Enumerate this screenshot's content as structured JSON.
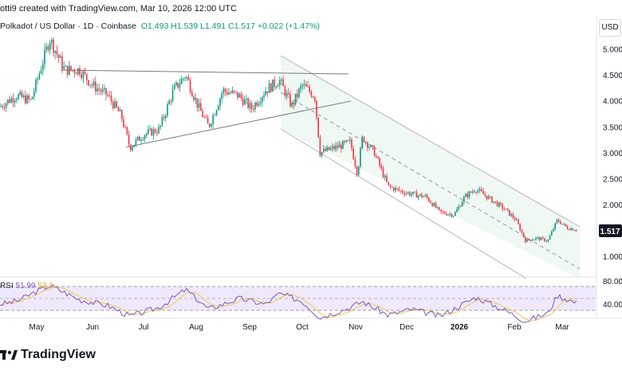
{
  "header": {
    "created_by": "otti9 created with TradingView.com, Mar 10, 2026 12:00 UTC"
  },
  "symbol": {
    "name": "Polkadot / US Dollar · 1D · Coinbase",
    "open": "O1.493",
    "high": "H1.539",
    "low": "L1.491",
    "close": "C1.517",
    "change": "+0.022 (+1.47%)"
  },
  "currency_label": "USD",
  "rsi": {
    "label": "RSI",
    "value": "51.99",
    "ma_value": "53.3",
    "levels": [
      "80.00",
      "40.00"
    ]
  },
  "footer": {
    "brand": "TradingView"
  },
  "colors": {
    "up": "#089981",
    "down": "#f23645",
    "rsi_line": "#7e57c2",
    "rsi_ma": "#f2c94c",
    "channel_fill": "#e8f5ec",
    "channel_line": "#b2b5be",
    "trend_line": "#787b86"
  },
  "chart_data": {
    "type": "candlestick",
    "title": "Polkadot / US Dollar · 1D · Coinbase",
    "y_axis": {
      "ticks": [
        1.0,
        1.5,
        2.0,
        2.5,
        3.0,
        3.5,
        4.0,
        4.5,
        5.0
      ],
      "range": [
        0.6,
        5.7
      ]
    },
    "x_axis": {
      "ticks": [
        "May",
        "Jun",
        "Jul",
        "Aug",
        "Sep",
        "Oct",
        "Nov",
        "Dec",
        "2026",
        "Feb",
        "Mar"
      ]
    },
    "last_price": "1.517",
    "close_series": [
      {
        "date": "Apr 1",
        "close": 3.6
      },
      {
        "date": "Apr 12",
        "close": 3.9
      },
      {
        "date": "Apr 20",
        "close": 4.1
      },
      {
        "date": "Apr 28",
        "close": 4.0
      },
      {
        "date": "May 8",
        "close": 5.2
      },
      {
        "date": "May 16",
        "close": 4.6
      },
      {
        "date": "May 24",
        "close": 4.6
      },
      {
        "date": "Jun 1",
        "close": 4.3
      },
      {
        "date": "Jun 10",
        "close": 4.1
      },
      {
        "date": "Jun 18",
        "close": 3.7
      },
      {
        "date": "Jun 23",
        "close": 3.1
      },
      {
        "date": "Jul 1",
        "close": 3.35
      },
      {
        "date": "Jul 10",
        "close": 3.45
      },
      {
        "date": "Jul 18",
        "close": 4.2
      },
      {
        "date": "Jul 25",
        "close": 4.5
      },
      {
        "date": "Aug 2",
        "close": 3.9
      },
      {
        "date": "Aug 8",
        "close": 3.5
      },
      {
        "date": "Aug 16",
        "close": 4.2
      },
      {
        "date": "Aug 25",
        "close": 4.1
      },
      {
        "date": "Sep 2",
        "close": 3.85
      },
      {
        "date": "Sep 10",
        "close": 4.2
      },
      {
        "date": "Sep 18",
        "close": 4.4
      },
      {
        "date": "Sep 25",
        "close": 3.9
      },
      {
        "date": "Oct 1",
        "close": 4.3
      },
      {
        "date": "Oct 8",
        "close": 4.1
      },
      {
        "date": "Oct 11",
        "close": 3.0
      },
      {
        "date": "Oct 20",
        "close": 3.1
      },
      {
        "date": "Oct 28",
        "close": 3.2
      },
      {
        "date": "Nov 2",
        "close": 2.6
      },
      {
        "date": "Nov 5",
        "close": 3.3
      },
      {
        "date": "Nov 12",
        "close": 3.0
      },
      {
        "date": "Nov 20",
        "close": 2.35
      },
      {
        "date": "Nov 28",
        "close": 2.25
      },
      {
        "date": "Dec 4",
        "close": 2.2
      },
      {
        "date": "Dec 12",
        "close": 2.15
      },
      {
        "date": "Dec 20",
        "close": 1.85
      },
      {
        "date": "Dec 28",
        "close": 1.8
      },
      {
        "date": "Jan 4",
        "close": 2.15
      },
      {
        "date": "Jan 10",
        "close": 2.3
      },
      {
        "date": "Jan 18",
        "close": 2.1
      },
      {
        "date": "Jan 26",
        "close": 1.9
      },
      {
        "date": "Feb 2",
        "close": 1.7
      },
      {
        "date": "Feb 8",
        "close": 1.3
      },
      {
        "date": "Feb 15",
        "close": 1.35
      },
      {
        "date": "Feb 22",
        "close": 1.3
      },
      {
        "date": "Feb 28",
        "close": 1.7
      },
      {
        "date": "Mar 4",
        "close": 1.55
      },
      {
        "date": "Mar 10",
        "close": 1.517
      }
    ],
    "rsi_series": [
      {
        "date": "Apr 1",
        "rsi": 45
      },
      {
        "date": "Apr 20",
        "rsi": 55
      },
      {
        "date": "May 8",
        "rsi": 82
      },
      {
        "date": "May 24",
        "rsi": 58
      },
      {
        "date": "Jun 10",
        "rsi": 48
      },
      {
        "date": "Jun 23",
        "rsi": 30
      },
      {
        "date": "Jul 10",
        "rsi": 45
      },
      {
        "date": "Jul 25",
        "rsi": 75
      },
      {
        "date": "Aug 8",
        "rsi": 42
      },
      {
        "date": "Aug 25",
        "rsi": 60
      },
      {
        "date": "Sep 10",
        "rsi": 50
      },
      {
        "date": "Sep 18",
        "rsi": 68
      },
      {
        "date": "Oct 1",
        "rsi": 55
      },
      {
        "date": "Oct 11",
        "rsi": 28
      },
      {
        "date": "Oct 28",
        "rsi": 45
      },
      {
        "date": "Nov 5",
        "rsi": 55
      },
      {
        "date": "Nov 20",
        "rsi": 32
      },
      {
        "date": "Dec 4",
        "rsi": 42
      },
      {
        "date": "Dec 20",
        "rsi": 30
      },
      {
        "date": "Jan 10",
        "rsi": 62
      },
      {
        "date": "Jan 26",
        "rsi": 40
      },
      {
        "date": "Feb 8",
        "rsi": 22
      },
      {
        "date": "Feb 22",
        "rsi": 35
      },
      {
        "date": "Feb 28",
        "rsi": 65
      },
      {
        "date": "Mar 10",
        "rsi": 52
      }
    ]
  }
}
